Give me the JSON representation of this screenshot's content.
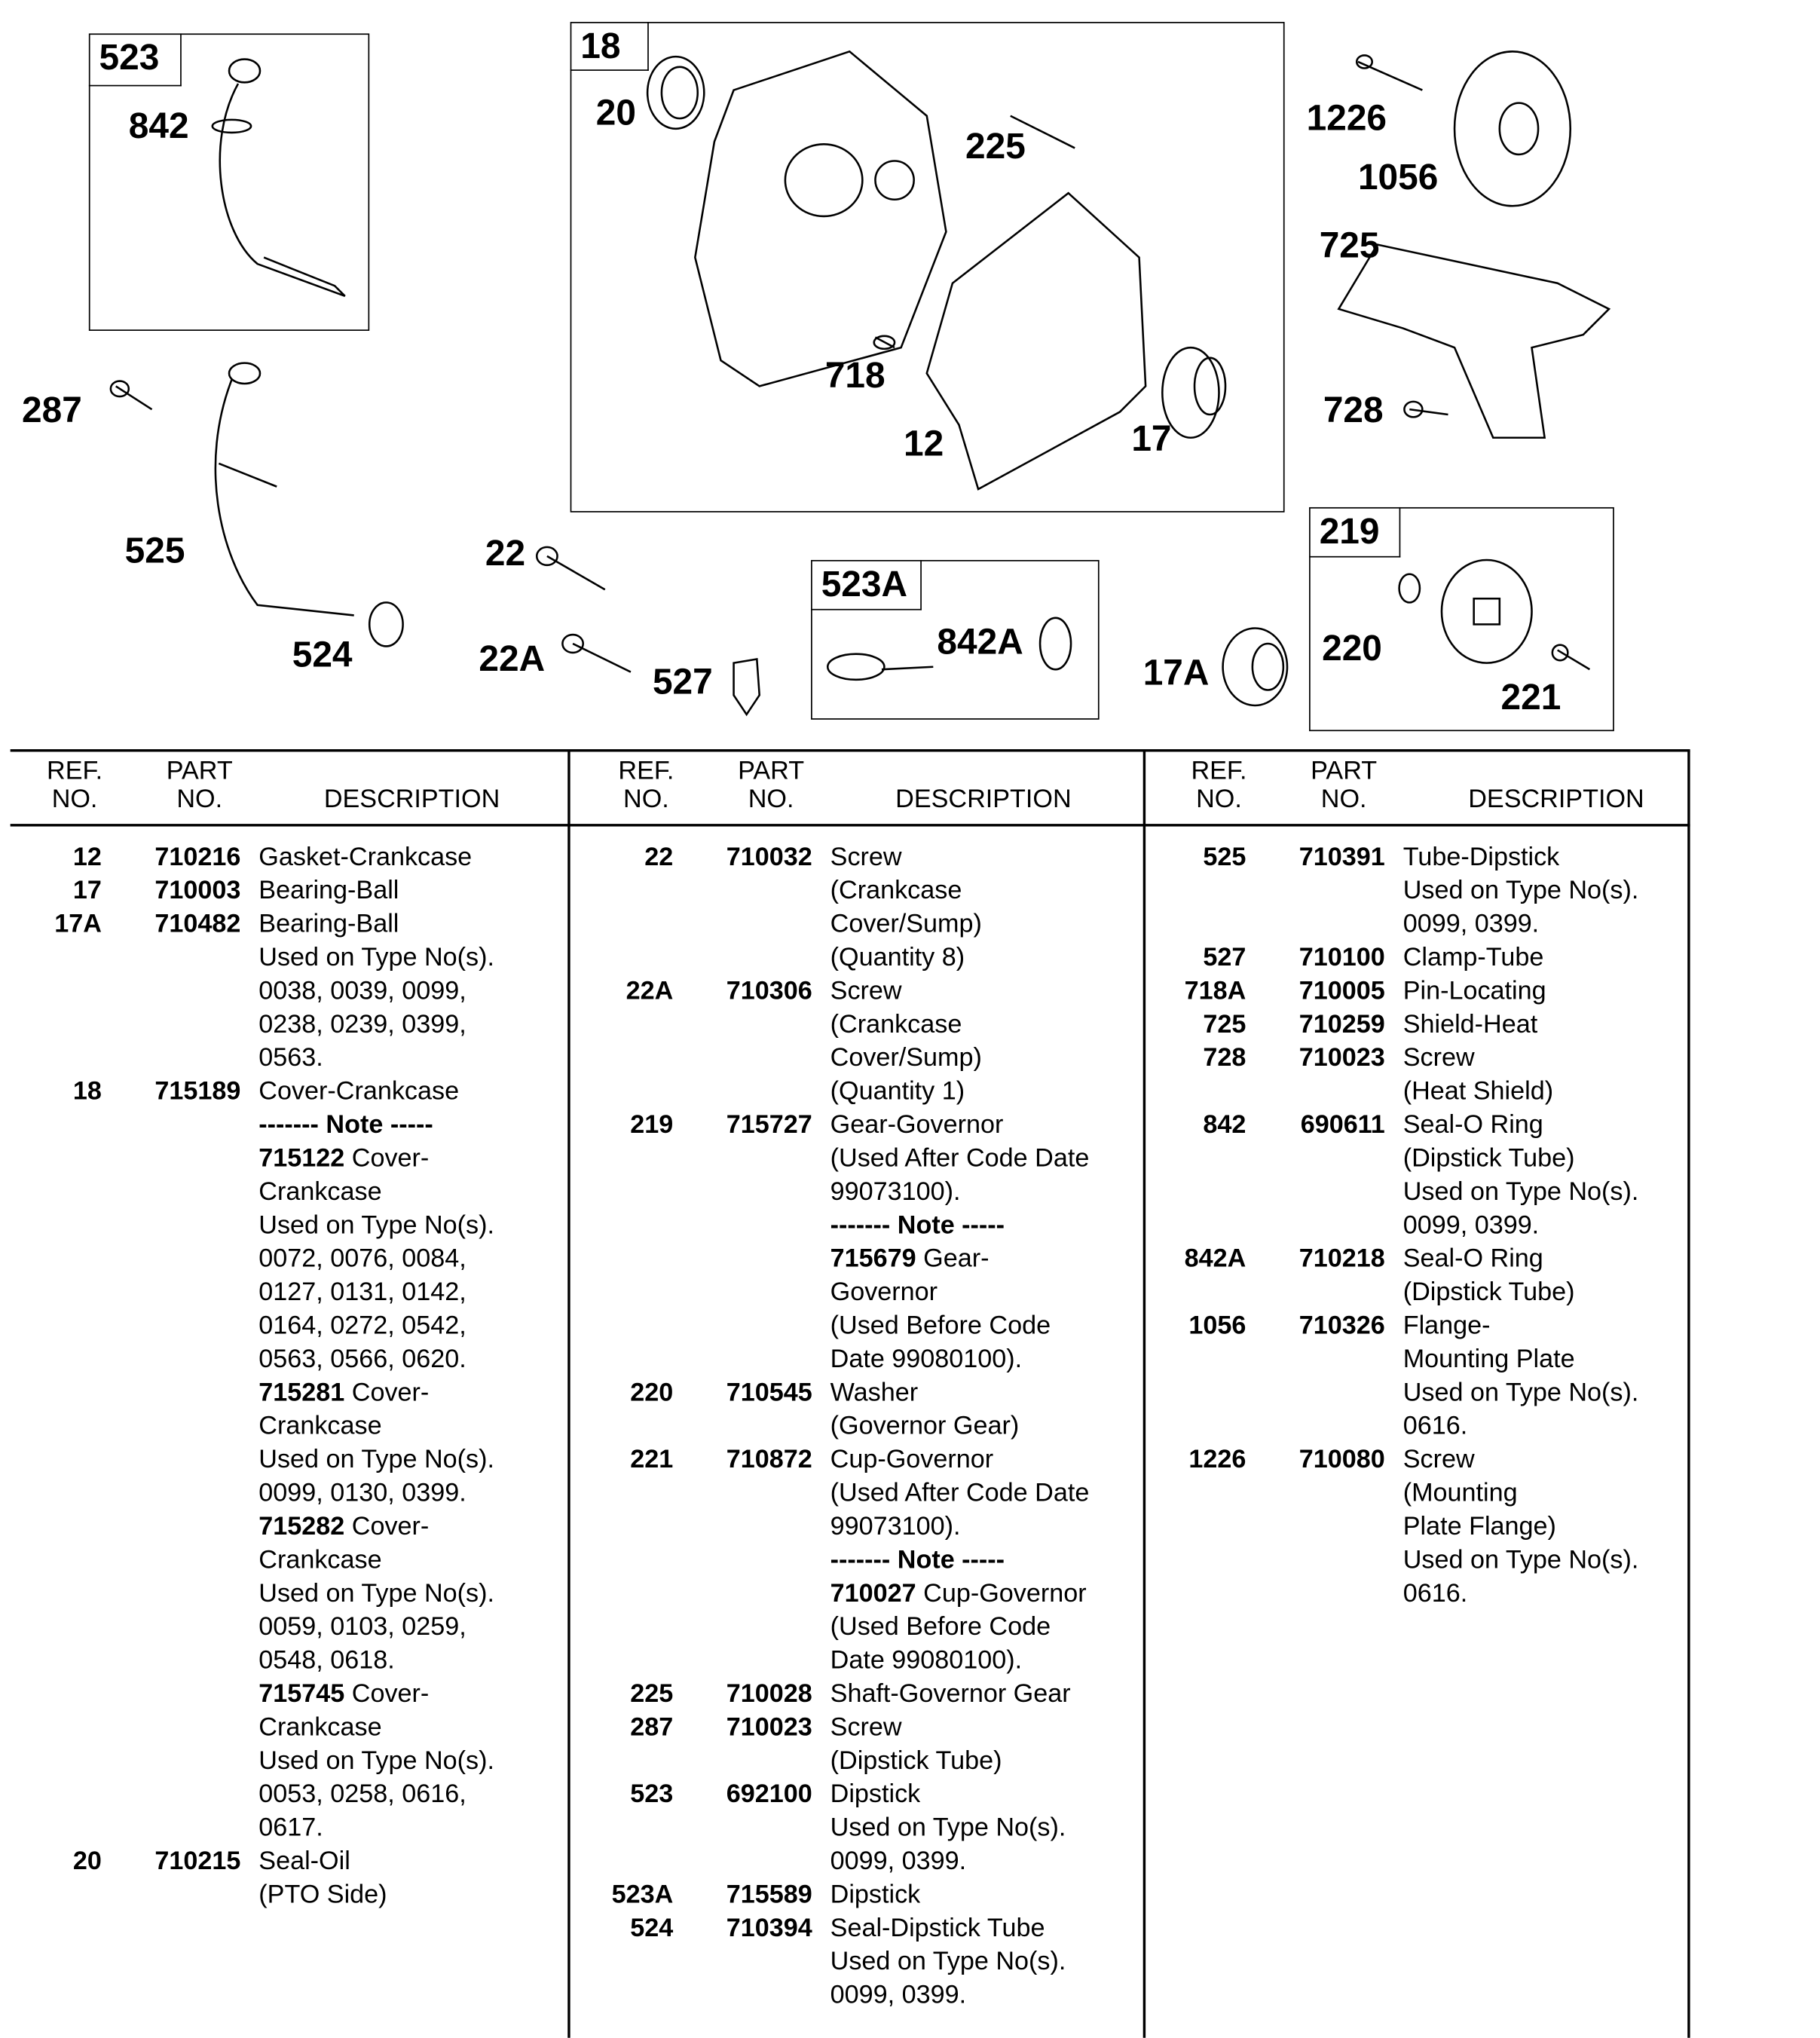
{
  "diagram": {
    "boxes": {
      "b523": "523",
      "b18": "18",
      "b523A": "523A",
      "b219": "219"
    },
    "labels": {
      "l842": "842",
      "l20": "20",
      "l225": "225",
      "l718": "718",
      "l12": "12",
      "l17": "17",
      "l1226": "1226",
      "l1056": "1056",
      "l725": "725",
      "l728": "728",
      "l287": "287",
      "l525": "525",
      "l524": "524",
      "l22": "22",
      "l22A": "22A",
      "l527": "527",
      "l842A": "842A",
      "l17A": "17A",
      "l220": "220",
      "l221": "221"
    }
  },
  "table": {
    "headers": {
      "ref": "REF.",
      "ref2": "NO.",
      "part": "PART",
      "part2": "NO.",
      "desc": "DESCRIPTION"
    },
    "columns": [
      [
        {
          "ref": "12",
          "part": "710216",
          "lines": [
            "Gasket-Crankcase"
          ]
        },
        {
          "ref": "17",
          "part": "710003",
          "lines": [
            "Bearing-Ball"
          ]
        },
        {
          "ref": "17A",
          "part": "710482",
          "lines": [
            "Bearing-Ball",
            "Used on Type No(s).",
            "0038, 0039, 0099,",
            "0238, 0239, 0399,",
            "0563."
          ]
        },
        {
          "ref": "18",
          "part": "715189",
          "lines": [
            "Cover-Crankcase",
            {
              "b": "------- Note -----",
              "t": ""
            },
            {
              "b": "715122",
              "t": " Cover-"
            },
            "Crankcase",
            "Used on Type No(s).",
            "0072, 0076, 0084,",
            "0127, 0131, 0142,",
            "0164, 0272, 0542,",
            "0563, 0566, 0620.",
            {
              "b": "715281",
              "t": " Cover-"
            },
            "Crankcase",
            "Used on Type No(s).",
            "0099, 0130, 0399.",
            {
              "b": "715282",
              "t": " Cover-"
            },
            "Crankcase",
            "Used on Type No(s).",
            "0059, 0103, 0259,",
            "0548, 0618.",
            {
              "b": "715745",
              "t": " Cover-"
            },
            "Crankcase",
            "Used on Type No(s).",
            "0053, 0258, 0616,",
            "0617."
          ]
        },
        {
          "ref": "20",
          "part": "710215",
          "lines": [
            "Seal-Oil",
            "(PTO Side)"
          ]
        }
      ],
      [
        {
          "ref": "22",
          "part": "710032",
          "lines": [
            "Screw",
            "(Crankcase",
            "Cover/Sump)",
            "(Quantity 8)"
          ]
        },
        {
          "ref": "22A",
          "part": "710306",
          "lines": [
            "Screw",
            "(Crankcase",
            "Cover/Sump)",
            "(Quantity 1)"
          ]
        },
        {
          "ref": "219",
          "part": "715727",
          "lines": [
            "Gear-Governor",
            "(Used After Code Date",
            "99073100).",
            {
              "b": "------- Note -----",
              "t": ""
            },
            {
              "b": "715679",
              "t": " Gear-"
            },
            "Governor",
            "(Used Before Code",
            "Date 99080100)."
          ]
        },
        {
          "ref": "220",
          "part": "710545",
          "lines": [
            "Washer",
            "(Governor Gear)"
          ]
        },
        {
          "ref": "221",
          "part": "710872",
          "lines": [
            "Cup-Governor",
            "(Used After Code Date",
            "99073100).",
            {
              "b": "------- Note -----",
              "t": ""
            },
            {
              "b": "710027",
              "t": " Cup-Governor"
            },
            "(Used Before Code",
            "Date 99080100)."
          ]
        },
        {
          "ref": "225",
          "part": "710028",
          "lines": [
            "Shaft-Governor Gear"
          ]
        },
        {
          "ref": "287",
          "part": "710023",
          "lines": [
            "Screw",
            "(Dipstick Tube)"
          ]
        },
        {
          "ref": "523",
          "part": "692100",
          "lines": [
            "Dipstick",
            "Used on Type No(s).",
            "0099, 0399."
          ]
        },
        {
          "ref": "523A",
          "part": "715589",
          "lines": [
            "Dipstick"
          ]
        },
        {
          "ref": "524",
          "part": "710394",
          "lines": [
            "Seal-Dipstick Tube",
            "Used on Type No(s).",
            "0099, 0399."
          ]
        }
      ],
      [
        {
          "ref": "525",
          "part": "710391",
          "lines": [
            "Tube-Dipstick",
            "Used on Type No(s).",
            "0099, 0399."
          ]
        },
        {
          "ref": "527",
          "part": "710100",
          "lines": [
            "Clamp-Tube"
          ]
        },
        {
          "ref": "718A",
          "part": "710005",
          "lines": [
            "Pin-Locating"
          ]
        },
        {
          "ref": "725",
          "part": "710259",
          "lines": [
            "Shield-Heat"
          ]
        },
        {
          "ref": "728",
          "part": "710023",
          "lines": [
            "Screw",
            "(Heat Shield)"
          ]
        },
        {
          "ref": "842",
          "part": "690611",
          "lines": [
            "Seal-O Ring",
            "(Dipstick Tube)",
            "Used on Type No(s).",
            "0099, 0399."
          ]
        },
        {
          "ref": "842A",
          "part": "710218",
          "lines": [
            "Seal-O Ring",
            "(Dipstick Tube)"
          ]
        },
        {
          "ref": "1056",
          "part": "710326",
          "lines": [
            "Flange-",
            "Mounting Plate",
            "Used on Type No(s).",
            "0616."
          ]
        },
        {
          "ref": "1226",
          "part": "710080",
          "lines": [
            "Screw",
            "(Mounting",
            "Plate Flange)",
            "Used on Type No(s).",
            "0616."
          ]
        }
      ]
    ]
  }
}
